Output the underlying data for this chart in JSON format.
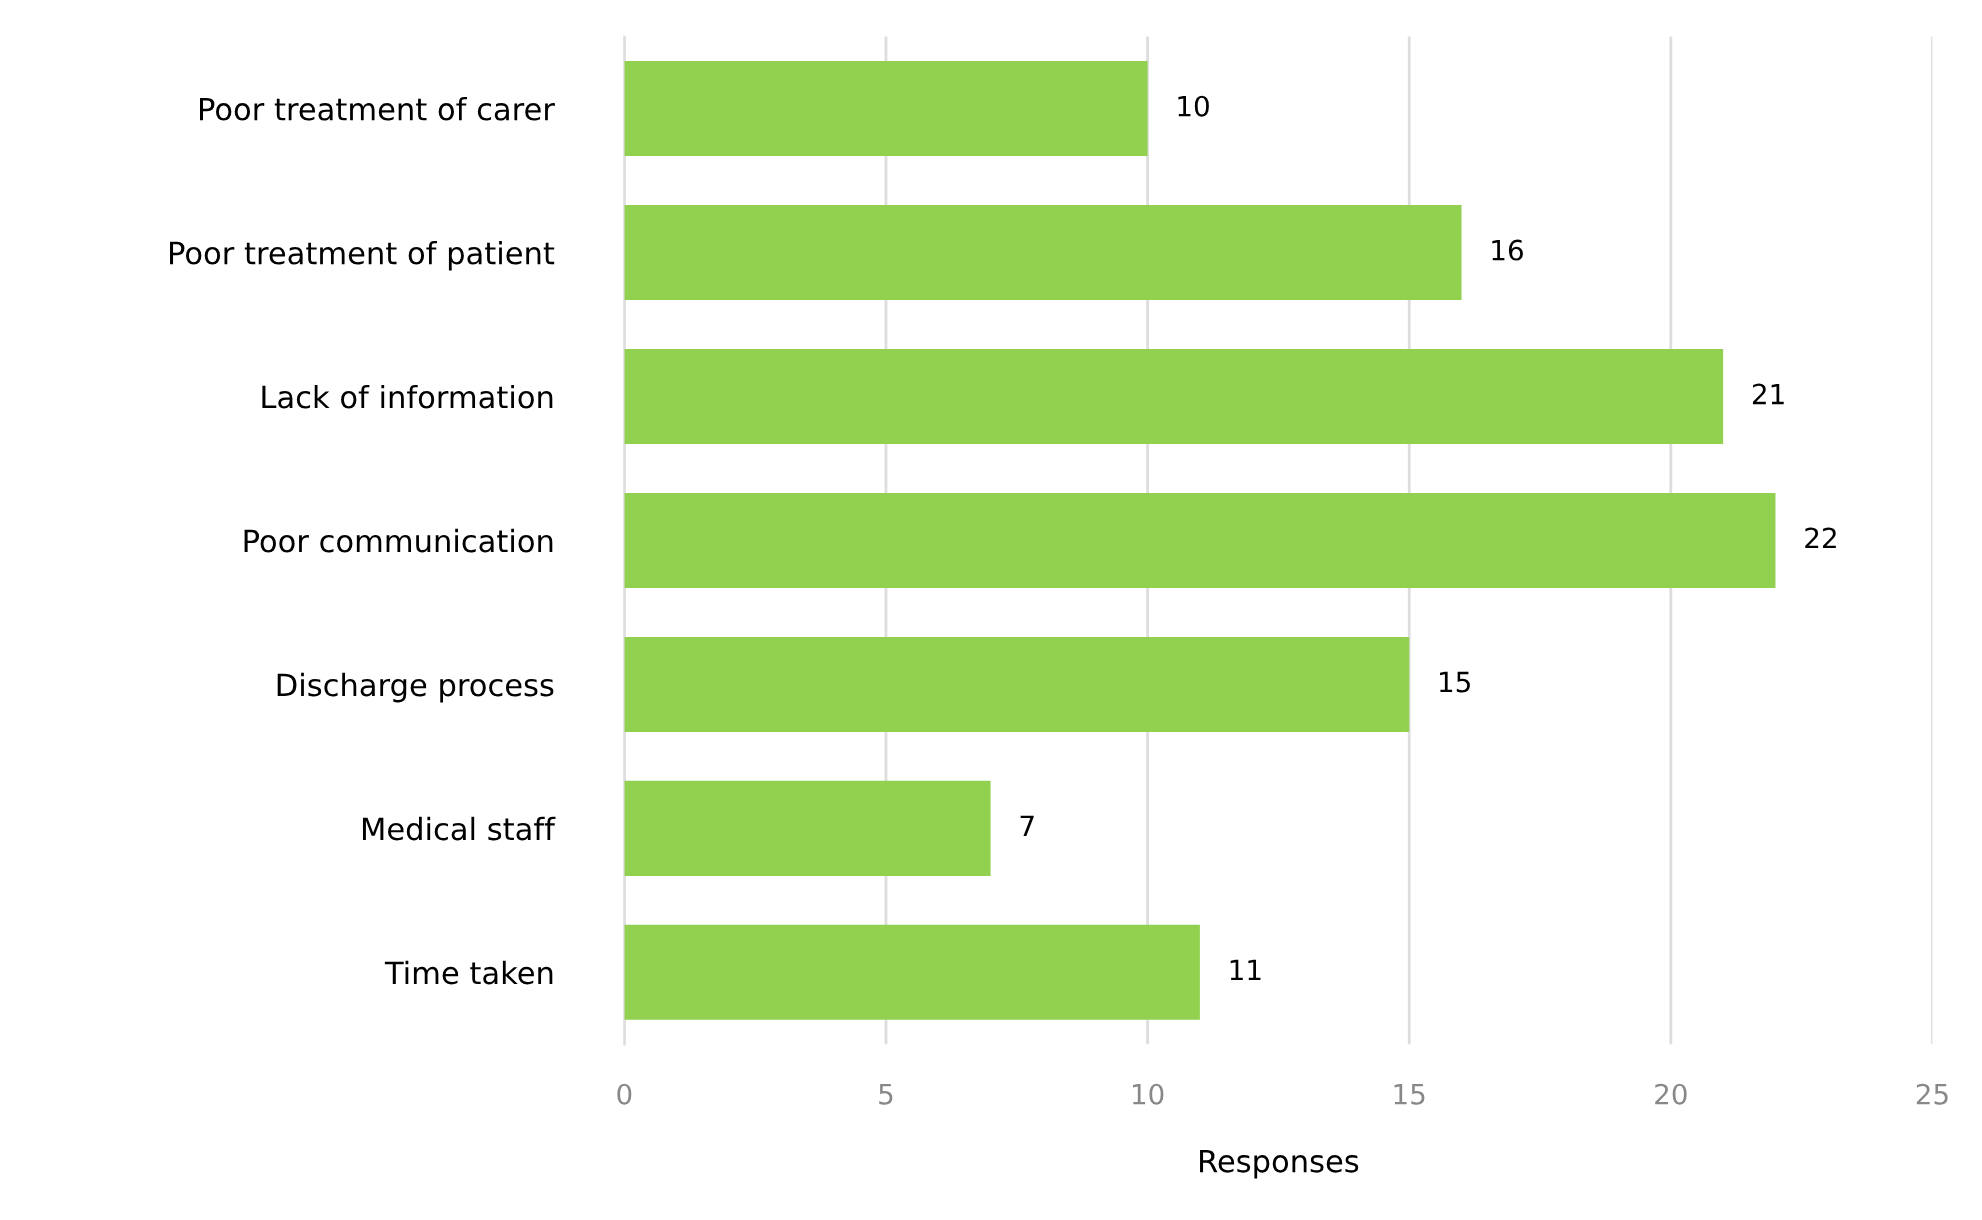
{
  "chart_data": {
    "type": "bar",
    "orientation": "horizontal",
    "xlabel": "Responses",
    "categories": [
      "Poor treatment of carer",
      "Poor treatment of patient",
      "Lack of information",
      "Poor communication",
      "Discharge process",
      "Medical staff",
      "Time taken"
    ],
    "values": [
      10,
      16,
      21,
      22,
      15,
      7,
      11
    ],
    "color": "#92d050",
    "xlim": [
      0,
      25
    ],
    "xticks": [
      0,
      5,
      10,
      15,
      20,
      25
    ],
    "grid": "x",
    "data_labels": true
  }
}
